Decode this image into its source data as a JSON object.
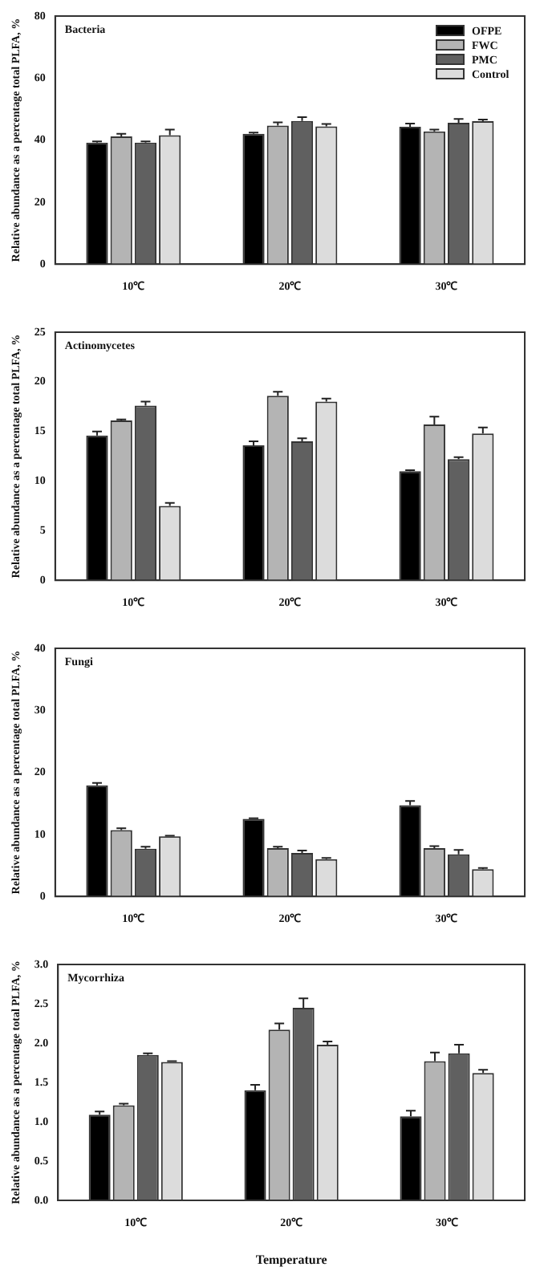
{
  "chart_data": [
    {
      "type": "bar",
      "title": "Bacteria",
      "ylabel": "Relative abundance as a percentage total PLFA, %",
      "categories": [
        "10℃",
        "20℃",
        "30℃"
      ],
      "ylim": [
        0,
        80
      ],
      "yticks": [
        0,
        20,
        40,
        60,
        80
      ],
      "grid": false,
      "legend": "top right",
      "series": [
        {
          "name": "OFPE",
          "color": "#000000",
          "values": [
            39.2,
            42,
            44.3
          ],
          "errors": [
            0.4,
            0.4,
            1
          ]
        },
        {
          "name": "FWC",
          "color": "#b4b4b4",
          "values": [
            41.2,
            44.7,
            42.8
          ],
          "errors": [
            0.8,
            1,
            0.6
          ]
        },
        {
          "name": "PMC",
          "color": "#606060",
          "values": [
            39.2,
            46.2,
            45.6
          ],
          "errors": [
            0.4,
            1.2,
            1.2
          ]
        },
        {
          "name": "Control",
          "color": "#dcdcdc",
          "values": [
            41.6,
            44.4,
            46.1
          ],
          "errors": [
            1.8,
            0.8,
            0.5
          ]
        }
      ]
    },
    {
      "type": "bar",
      "title": "Actinomycetes",
      "ylabel": "Relative abundance as a percentage total PLFA, %",
      "categories": [
        "10℃",
        "20℃",
        "30℃"
      ],
      "ylim": [
        0,
        25
      ],
      "yticks": [
        0,
        5,
        10,
        15,
        20,
        25
      ],
      "grid": false,
      "series": [
        {
          "color": "#000000",
          "values": [
            14.6,
            13.6,
            11
          ],
          "errors": [
            0.4,
            0.4,
            0.1
          ]
        },
        {
          "color": "#b4b4b4",
          "values": [
            16.1,
            18.6,
            15.7
          ],
          "errors": [
            0.1,
            0.4,
            0.8
          ]
        },
        {
          "color": "#606060",
          "values": [
            17.6,
            14,
            12.2
          ],
          "errors": [
            0.4,
            0.3,
            0.2
          ]
        },
        {
          "color": "#dcdcdc",
          "values": [
            7.5,
            18,
            14.8
          ],
          "errors": [
            0.3,
            0.3,
            0.6
          ]
        }
      ]
    },
    {
      "type": "bar",
      "title": "Fungi",
      "ylabel": "Relative abundance as a percentage total PLFA, %",
      "categories": [
        "10℃",
        "20℃",
        "30℃"
      ],
      "ylim": [
        0,
        40
      ],
      "yticks": [
        0,
        10,
        20,
        30,
        40
      ],
      "grid": false,
      "series": [
        {
          "color": "#000000",
          "values": [
            17.9,
            12.5,
            14.7
          ],
          "errors": [
            0.4,
            0.1,
            0.7
          ]
        },
        {
          "color": "#b4b4b4",
          "values": [
            10.7,
            7.8,
            7.8
          ],
          "errors": [
            0.3,
            0.2,
            0.3
          ]
        },
        {
          "color": "#606060",
          "values": [
            7.7,
            7,
            6.8
          ],
          "errors": [
            0.3,
            0.4,
            0.7
          ]
        },
        {
          "color": "#dcdcdc",
          "values": [
            9.7,
            6,
            4.4
          ],
          "errors": [
            0.1,
            0.2,
            0.2
          ]
        }
      ]
    },
    {
      "type": "bar",
      "title": "Mycorrhiza",
      "xlabel": "Temperature",
      "ylabel": "Relative abundance as a percentage total PLFA, %",
      "categories": [
        "10℃",
        "20℃",
        "30℃"
      ],
      "ylim": [
        0,
        3
      ],
      "yticks": [
        {
          "value": 0,
          "label": "0.0"
        },
        {
          "value": 0.5,
          "label": "0.5"
        },
        {
          "value": 1,
          "label": "1.0"
        },
        {
          "value": 1.5,
          "label": "1.5"
        },
        {
          "value": 2,
          "label": "2.0"
        },
        {
          "value": 2.5,
          "label": "2.5"
        },
        {
          "value": 3,
          "label": "3.0"
        }
      ],
      "grid": false,
      "series": [
        {
          "color": "#000000",
          "values": [
            1.09,
            1.4,
            1.07
          ],
          "errors": [
            0.04,
            0.07,
            0.07
          ]
        },
        {
          "color": "#b4b4b4",
          "values": [
            1.21,
            2.17,
            1.77
          ],
          "errors": [
            0.02,
            0.08,
            0.11
          ]
        },
        {
          "color": "#606060",
          "values": [
            1.85,
            2.45,
            1.87
          ],
          "errors": [
            0.02,
            0.12,
            0.11
          ]
        },
        {
          "color": "#dcdcdc",
          "values": [
            1.76,
            1.98,
            1.62
          ],
          "errors": [
            0.01,
            0.04,
            0.04
          ]
        }
      ]
    }
  ]
}
